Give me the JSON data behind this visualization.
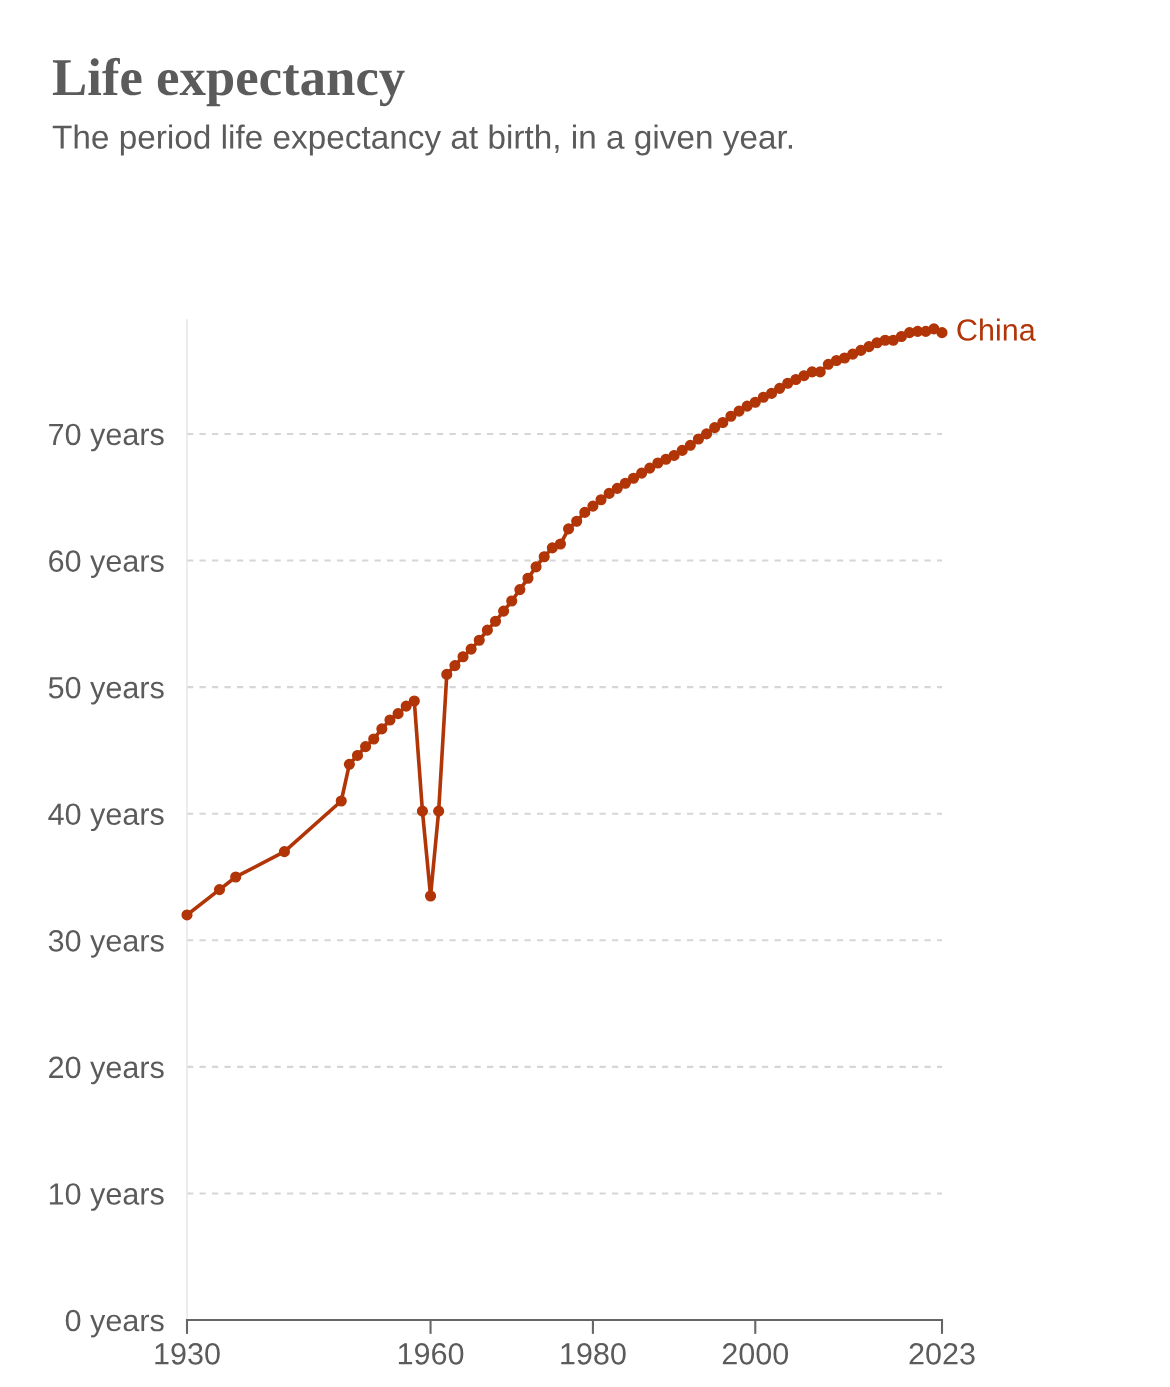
{
  "chart_data": {
    "type": "line",
    "title": "Life expectancy",
    "subtitle": "The period life expectancy at birth, in a given year.",
    "x": [
      1930,
      1934,
      1936,
      1942,
      1949,
      1950,
      1951,
      1952,
      1953,
      1954,
      1955,
      1956,
      1957,
      1958,
      1959,
      1960,
      1961,
      1962,
      1963,
      1964,
      1965,
      1966,
      1967,
      1968,
      1969,
      1970,
      1971,
      1972,
      1973,
      1974,
      1975,
      1976,
      1977,
      1978,
      1979,
      1980,
      1981,
      1982,
      1983,
      1984,
      1985,
      1986,
      1987,
      1988,
      1989,
      1990,
      1991,
      1992,
      1993,
      1994,
      1995,
      1996,
      1997,
      1998,
      1999,
      2000,
      2001,
      2002,
      2003,
      2004,
      2005,
      2006,
      2007,
      2008,
      2009,
      2010,
      2011,
      2012,
      2013,
      2014,
      2015,
      2016,
      2017,
      2018,
      2019,
      2020,
      2021,
      2022,
      2023
    ],
    "series": [
      {
        "name": "China",
        "color": "#b13507",
        "values": [
          32.0,
          34.0,
          35.0,
          37.0,
          41.0,
          43.9,
          44.6,
          45.3,
          45.9,
          46.7,
          47.4,
          47.9,
          48.5,
          48.9,
          40.2,
          33.5,
          40.2,
          51.0,
          51.7,
          52.4,
          53.0,
          53.7,
          54.5,
          55.2,
          56.0,
          56.8,
          57.7,
          58.6,
          59.5,
          60.3,
          61.0,
          61.3,
          62.5,
          63.1,
          63.8,
          64.3,
          64.8,
          65.3,
          65.7,
          66.1,
          66.5,
          66.9,
          67.3,
          67.7,
          68.0,
          68.3,
          68.7,
          69.1,
          69.6,
          70.0,
          70.5,
          70.9,
          71.4,
          71.8,
          72.2,
          72.5,
          72.9,
          73.2,
          73.6,
          74.0,
          74.3,
          74.6,
          74.9,
          74.9,
          75.5,
          75.8,
          76.0,
          76.3,
          76.6,
          76.9,
          77.2,
          77.4,
          77.4,
          77.7,
          78.0,
          78.1,
          78.1,
          78.3,
          78.0
        ]
      }
    ],
    "xlim": [
      1930,
      2023
    ],
    "xticks": [
      1930,
      1960,
      1980,
      2000,
      2023
    ],
    "ylim": [
      0,
      79
    ],
    "yticks": [
      {
        "value": 0,
        "label": "0 years"
      },
      {
        "value": 10,
        "label": "10 years"
      },
      {
        "value": 20,
        "label": "20 years"
      },
      {
        "value": 30,
        "label": "30 years"
      },
      {
        "value": 40,
        "label": "40 years"
      },
      {
        "value": 50,
        "label": "50 years"
      },
      {
        "value": 60,
        "label": "60 years"
      },
      {
        "value": 70,
        "label": "70 years"
      }
    ],
    "grid": "y",
    "marker": "circle",
    "line_style": "solid",
    "legend": "right"
  }
}
